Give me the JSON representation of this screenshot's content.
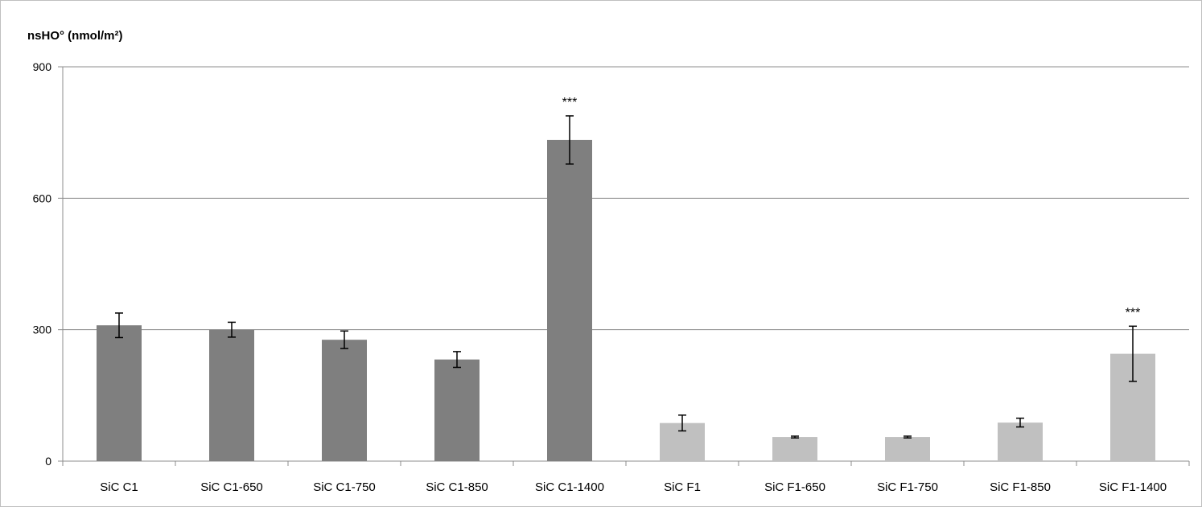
{
  "chart_data": {
    "type": "bar",
    "title": "",
    "xlabel": "",
    "ylabel": "nsHO° (nmol/m²)",
    "ylim": [
      0,
      900
    ],
    "yticks": [
      0,
      300,
      600,
      900
    ],
    "grid": true,
    "categories": [
      "SiC C1",
      "SiC C1-650",
      "SiC C1-750",
      "SiC C1-850",
      "SiC C1-1400",
      "SiC F1",
      "SiC F1-650",
      "SiC F1-750",
      "SiC F1-850",
      "SiC F1-1400"
    ],
    "values": [
      310,
      300,
      277,
      232,
      733,
      87,
      55,
      55,
      88,
      245
    ],
    "error": [
      28,
      17,
      20,
      18,
      55,
      18,
      2,
      2,
      10,
      63
    ],
    "annotations": [
      "",
      "",
      "",
      "",
      "***",
      "",
      "",
      "",
      "",
      "***"
    ],
    "colors": [
      "#7f7f7f",
      "#7f7f7f",
      "#7f7f7f",
      "#7f7f7f",
      "#7f7f7f",
      "#c0c0c0",
      "#c0c0c0",
      "#c0c0c0",
      "#c0c0c0",
      "#c0c0c0"
    ]
  }
}
